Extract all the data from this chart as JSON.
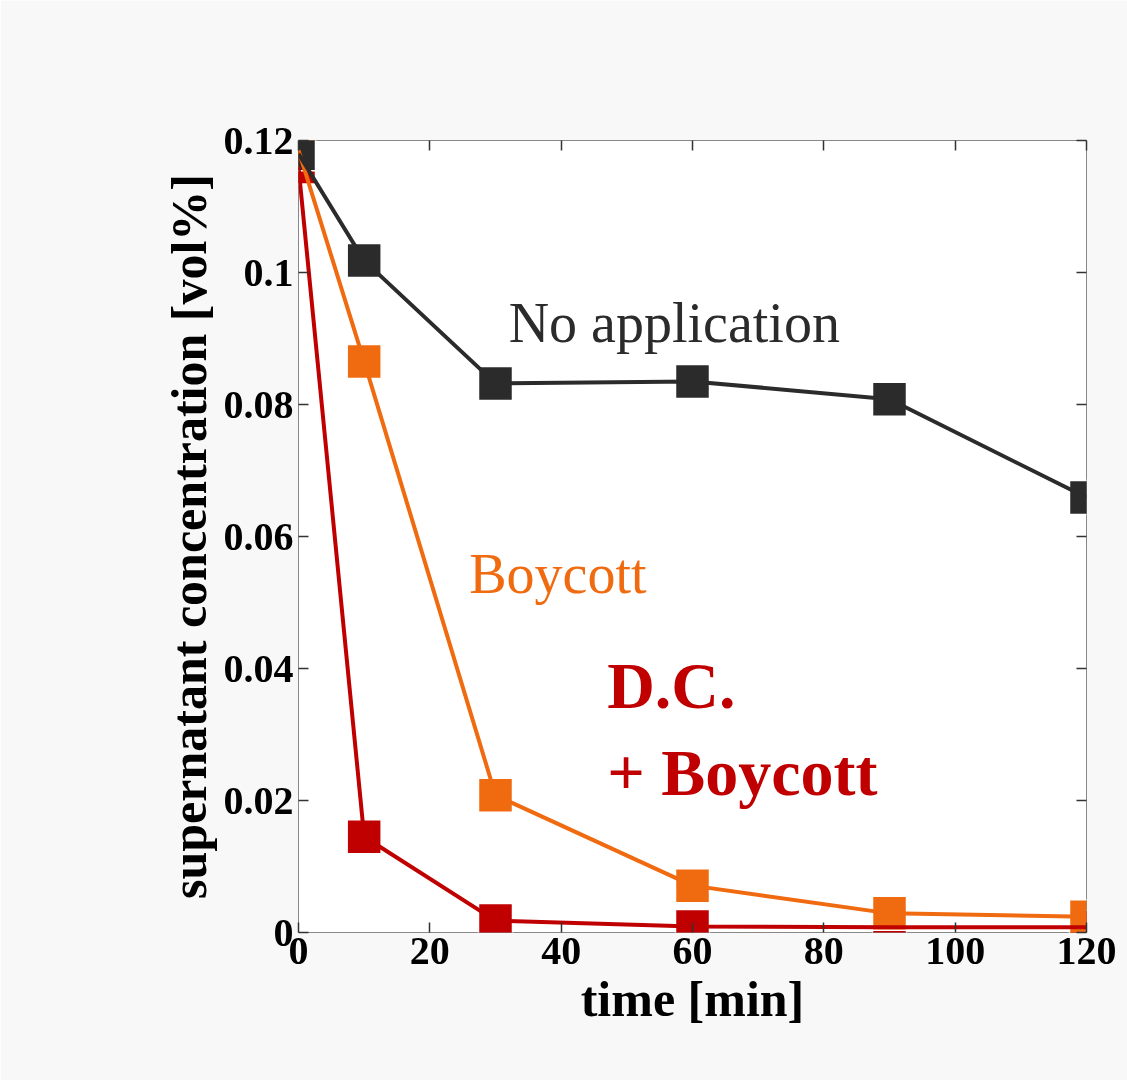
{
  "chart_data": {
    "type": "line",
    "xlabel": "time [min]",
    "ylabel": "supernatant concentration [vol%]",
    "x": [
      0,
      10,
      30,
      60,
      90,
      120
    ],
    "xlim": [
      0,
      120
    ],
    "ylim": [
      0,
      0.12
    ],
    "xticks": [
      0,
      20,
      40,
      60,
      80,
      100,
      120
    ],
    "yticks": [
      0,
      0.02,
      0.04,
      0.06,
      0.08,
      0.1,
      0.12
    ],
    "grid": false,
    "marker": "square",
    "line_style": "solid",
    "series": [
      {
        "name": "No application",
        "color": "#2b2b2b",
        "values": [
          0.118,
          0.1018,
          0.0832,
          0.0835,
          0.0808,
          0.0659
        ]
      },
      {
        "name": "Boycott",
        "color": "#f06a10",
        "values": [
          0.1185,
          0.0865,
          0.0208,
          0.0071,
          0.0029,
          0.0024
        ]
      },
      {
        "name": "D.C.\n+ Boycott",
        "color": "#c00000",
        "values": [
          0.116,
          0.0145,
          0.0018,
          0.0009,
          0.0008,
          0.0008
        ]
      }
    ]
  }
}
